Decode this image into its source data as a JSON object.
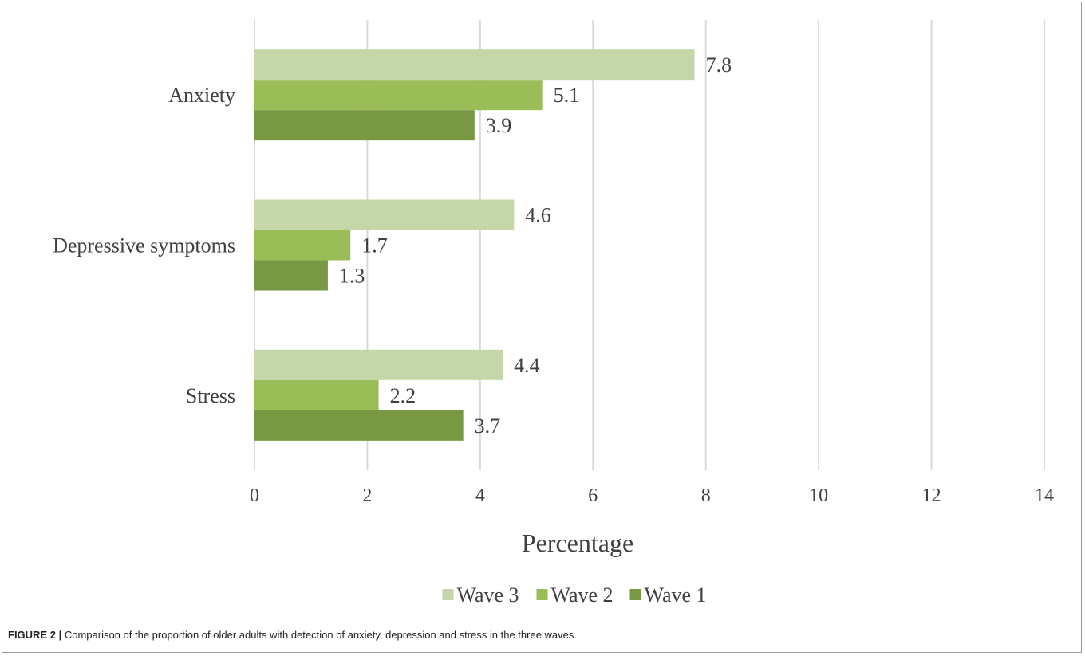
{
  "caption": {
    "label": "FIGURE 2 |",
    "text": "Comparison of the proportion of older adults with detection of anxiety, depression and stress in the three waves."
  },
  "chart_data": {
    "type": "bar",
    "orientation": "horizontal",
    "categories": [
      "Anxiety",
      "Depressive symptoms",
      "Stress"
    ],
    "series": [
      {
        "name": "Wave 3",
        "values": [
          7.8,
          4.6,
          4.4
        ],
        "color": "#c5d7a9"
      },
      {
        "name": "Wave 2",
        "values": [
          5.1,
          1.7,
          2.2
        ],
        "color": "#9bbd58"
      },
      {
        "name": "Wave 1",
        "values": [
          3.9,
          1.3,
          3.7
        ],
        "color": "#789843"
      }
    ],
    "xlabel": "Percentage",
    "xlim": [
      0,
      14
    ],
    "xticks": [
      0,
      2,
      4,
      6,
      8,
      10,
      12,
      14
    ],
    "grid": "vertical",
    "legend_position": "bottom",
    "data_labels": true
  }
}
